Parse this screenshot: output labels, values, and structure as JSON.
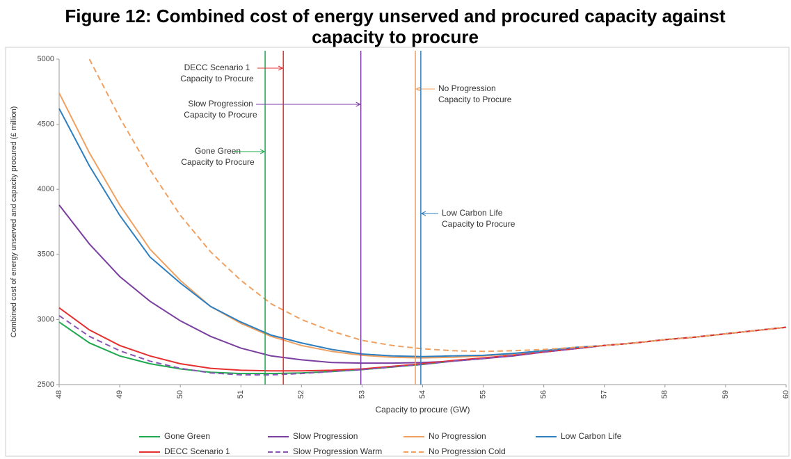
{
  "chart_data": {
    "type": "line",
    "title": "Figure 12: Combined cost of energy unserved and procured capacity against capacity to procure",
    "xlabel": "Capacity to procure (GW)",
    "ylabel": "Combined cost of energy unserved and capacity procured (£ million)",
    "x": [
      48,
      48.5,
      49,
      49.5,
      50,
      50.5,
      51,
      51.5,
      52,
      52.5,
      53,
      53.5,
      54,
      54.5,
      55,
      55.5,
      56,
      56.5,
      57,
      57.5,
      58,
      58.5,
      59,
      59.5,
      60
    ],
    "xlim": [
      48,
      60
    ],
    "xticks": [
      48,
      49,
      50,
      51,
      52,
      53,
      54,
      55,
      56,
      57,
      58,
      59,
      60
    ],
    "ylim": [
      2500,
      5000
    ],
    "yticks": [
      2500,
      3000,
      3500,
      4000,
      4500,
      5000
    ],
    "grid": false,
    "legend": "bottom",
    "series": [
      {
        "name": "Gone Green",
        "color": "#1fa84f",
        "dash": false,
        "values": [
          2980,
          2820,
          2720,
          2660,
          2620,
          2595,
          2585,
          2585,
          2590,
          2600,
          2615,
          2635,
          2655,
          2680,
          2700,
          2725,
          2750,
          2775,
          2800,
          2820,
          2845,
          2865,
          2890,
          2915,
          2940
        ]
      },
      {
        "name": "Slow Progression",
        "color": "#7a3fa0",
        "dash": false,
        "values": [
          3880,
          3580,
          3330,
          3140,
          2990,
          2870,
          2780,
          2720,
          2690,
          2670,
          2665,
          2665,
          2670,
          2680,
          2700,
          2720,
          2750,
          2775,
          2800,
          2820,
          2845,
          2865,
          2890,
          2915,
          2940
        ]
      },
      {
        "name": "No Progression",
        "color": "#f0a060",
        "dash": false,
        "values": [
          4740,
          4280,
          3880,
          3540,
          3300,
          3100,
          2970,
          2870,
          2800,
          2755,
          2725,
          2710,
          2705,
          2710,
          2720,
          2735,
          2755,
          2780,
          2800,
          2820,
          2845,
          2865,
          2890,
          2915,
          2940
        ]
      },
      {
        "name": "Low Carbon Life",
        "color": "#2e7fc0",
        "dash": false,
        "values": [
          4620,
          4180,
          3800,
          3480,
          3280,
          3100,
          2980,
          2880,
          2820,
          2770,
          2735,
          2720,
          2715,
          2720,
          2725,
          2740,
          2760,
          2785,
          2800,
          2820,
          2845,
          2865,
          2890,
          2915,
          2940
        ]
      },
      {
        "name": "DECC Scenario 1",
        "color": "#e53030",
        "dash": false,
        "values": [
          3090,
          2920,
          2800,
          2720,
          2660,
          2625,
          2610,
          2605,
          2605,
          2610,
          2620,
          2640,
          2660,
          2685,
          2705,
          2725,
          2750,
          2775,
          2800,
          2820,
          2845,
          2865,
          2890,
          2915,
          2940
        ]
      },
      {
        "name": "Slow Progression Warm",
        "color": "#8a55b5",
        "dash": true,
        "values": [
          3030,
          2870,
          2760,
          2680,
          2625,
          2590,
          2575,
          2575,
          2585,
          2600,
          2615,
          2635,
          2655,
          2680,
          2700,
          2725,
          2750,
          2775,
          2800,
          2820,
          2845,
          2865,
          2890,
          2915,
          2940
        ]
      },
      {
        "name": "No Progression Cold",
        "color": "#f0a060",
        "dash": true,
        "values": [
          null,
          5000,
          4550,
          4150,
          3800,
          3520,
          3300,
          3120,
          3000,
          2910,
          2840,
          2800,
          2775,
          2760,
          2755,
          2760,
          2770,
          2785,
          2800,
          2820,
          2845,
          2865,
          2890,
          2915,
          2940
        ]
      }
    ],
    "vlines": [
      {
        "x": 51.4,
        "color": "#1fa84f",
        "label": [
          "Gone Green",
          "Capacity to Procure"
        ]
      },
      {
        "x": 51.7,
        "color": "#e53030",
        "label": [
          "DECC Scenario 1",
          "Capacity to Procure"
        ]
      },
      {
        "x": 52.98,
        "color": "#7a3fa0",
        "label": [
          "Slow Progression",
          "Capacity to Procure"
        ]
      },
      {
        "x": 53.88,
        "color": "#f0a060",
        "label": [
          "No Progression",
          "Capacity to Procure"
        ]
      },
      {
        "x": 53.97,
        "color": "#2e7fc0",
        "label": [
          "Low Carbon Life",
          "Capacity to Procure"
        ]
      }
    ]
  }
}
